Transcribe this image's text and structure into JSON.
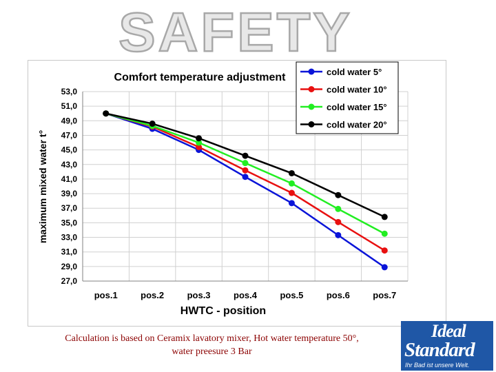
{
  "slide_title": "SAFETY",
  "caption": {
    "line1": "Calculation is based on Ceramix lavatory mixer, Hot water temperature 50°,",
    "line2": "water preesure 3 Bar"
  },
  "logo": {
    "line1": "Ideal",
    "line2": "Standard",
    "tagline": "Ihr Bad ist unsere Welt."
  },
  "colors": {
    "cold_5": "#0a14d8",
    "cold_10": "#e81010",
    "cold_15": "#22ee22",
    "cold_20": "#000000",
    "logo_bg": "#1f57a6",
    "caption": "#8b0000"
  },
  "chart_data": {
    "type": "line",
    "title": "Comfort  temperature adjustment",
    "xlabel": "HWTC - position",
    "ylabel": "maximum mixed water t°",
    "categories": [
      "pos.1",
      "pos.2",
      "pos.3",
      "pos.4",
      "pos.5",
      "pos.6",
      "pos.7"
    ],
    "ylim": [
      27.0,
      53.0
    ],
    "yticks": [
      "27,0",
      "29,0",
      "31,0",
      "33,0",
      "35,0",
      "37,0",
      "39,0",
      "41,0",
      "43,0",
      "45,0",
      "47,0",
      "49,0",
      "51,0",
      "53,0"
    ],
    "ytick_values": [
      27,
      29,
      31,
      33,
      35,
      37,
      39,
      41,
      43,
      45,
      47,
      49,
      51,
      53
    ],
    "grid": true,
    "legend_position": "top-right",
    "series": [
      {
        "name": "cold water 5°",
        "color": "#0a14d8",
        "values": [
          50.0,
          47.9,
          45.0,
          41.3,
          37.7,
          33.3,
          28.9
        ]
      },
      {
        "name": "cold water 10°",
        "color": "#e81010",
        "values": [
          50.0,
          48.2,
          45.4,
          42.2,
          39.1,
          35.1,
          31.2
        ]
      },
      {
        "name": "cold water 15°",
        "color": "#22ee22",
        "values": [
          50.0,
          48.3,
          46.0,
          43.2,
          40.4,
          36.9,
          33.5
        ]
      },
      {
        "name": "cold water 20°",
        "color": "#000000",
        "values": [
          50.0,
          48.6,
          46.6,
          44.2,
          41.8,
          38.8,
          35.8
        ]
      }
    ]
  }
}
